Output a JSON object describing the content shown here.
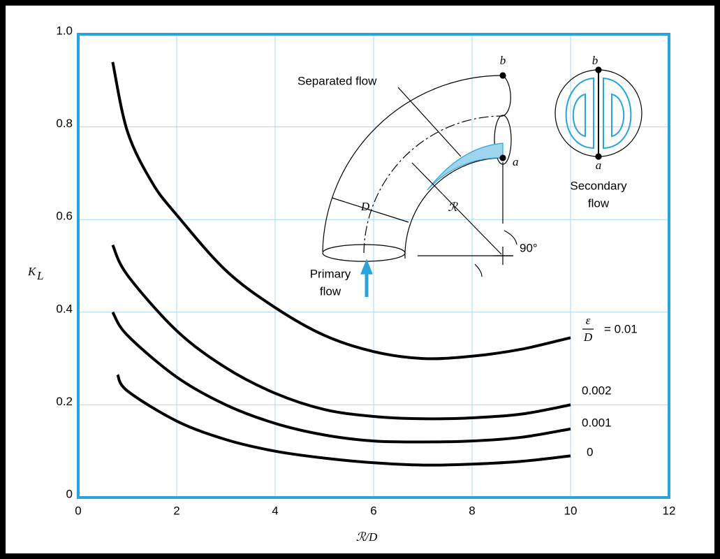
{
  "chart_data": {
    "type": "line",
    "xlabel": "ℛ/D",
    "ylabel": {
      "main": "K",
      "subscript": "L"
    },
    "xlim": [
      0,
      12
    ],
    "ylim": [
      0,
      1
    ],
    "xticks": [
      0,
      2,
      4,
      6,
      8,
      10,
      12
    ],
    "yticks": [
      0,
      0.2,
      0.4,
      0.6,
      0.8,
      {
        "value": 1,
        "label": "1.0"
      }
    ],
    "grid": true,
    "grid_color": "#a8d8f0",
    "frame_color": "#29a3dc",
    "series_prefix": {
      "numerator": "ε",
      "denominator": "D"
    },
    "series": [
      {
        "name": "= 0.01",
        "color": "#000000",
        "x": [
          0.7,
          1,
          1.5,
          2,
          3,
          4,
          5,
          6,
          7,
          8,
          9,
          10
        ],
        "values": [
          0.94,
          0.79,
          0.68,
          0.61,
          0.49,
          0.41,
          0.35,
          0.315,
          0.3,
          0.305,
          0.32,
          0.345
        ]
      },
      {
        "name": "0.002",
        "color": "#000000",
        "x": [
          0.7,
          1,
          2,
          3,
          4,
          5,
          6,
          7,
          8,
          9,
          10
        ],
        "values": [
          0.545,
          0.48,
          0.36,
          0.28,
          0.225,
          0.19,
          0.175,
          0.17,
          0.172,
          0.18,
          0.2
        ]
      },
      {
        "name": "0.001",
        "color": "#000000",
        "x": [
          0.7,
          1,
          2,
          3,
          4,
          5,
          6,
          7,
          8,
          9,
          10
        ],
        "values": [
          0.4,
          0.35,
          0.26,
          0.2,
          0.16,
          0.135,
          0.122,
          0.12,
          0.122,
          0.13,
          0.148
        ]
      },
      {
        "name": "0",
        "color": "#000000",
        "x": [
          0.8,
          1,
          2,
          3,
          4,
          5,
          6,
          7,
          8,
          9,
          10
        ],
        "values": [
          0.265,
          0.23,
          0.165,
          0.125,
          0.1,
          0.085,
          0.075,
          0.07,
          0.072,
          0.078,
          0.09
        ]
      }
    ],
    "annotations": [
      "Separated flow",
      "b",
      "a",
      "D",
      "ℛ",
      "90°",
      "Primary",
      "flow",
      "b",
      "a",
      "Secondary",
      "flow"
    ]
  }
}
